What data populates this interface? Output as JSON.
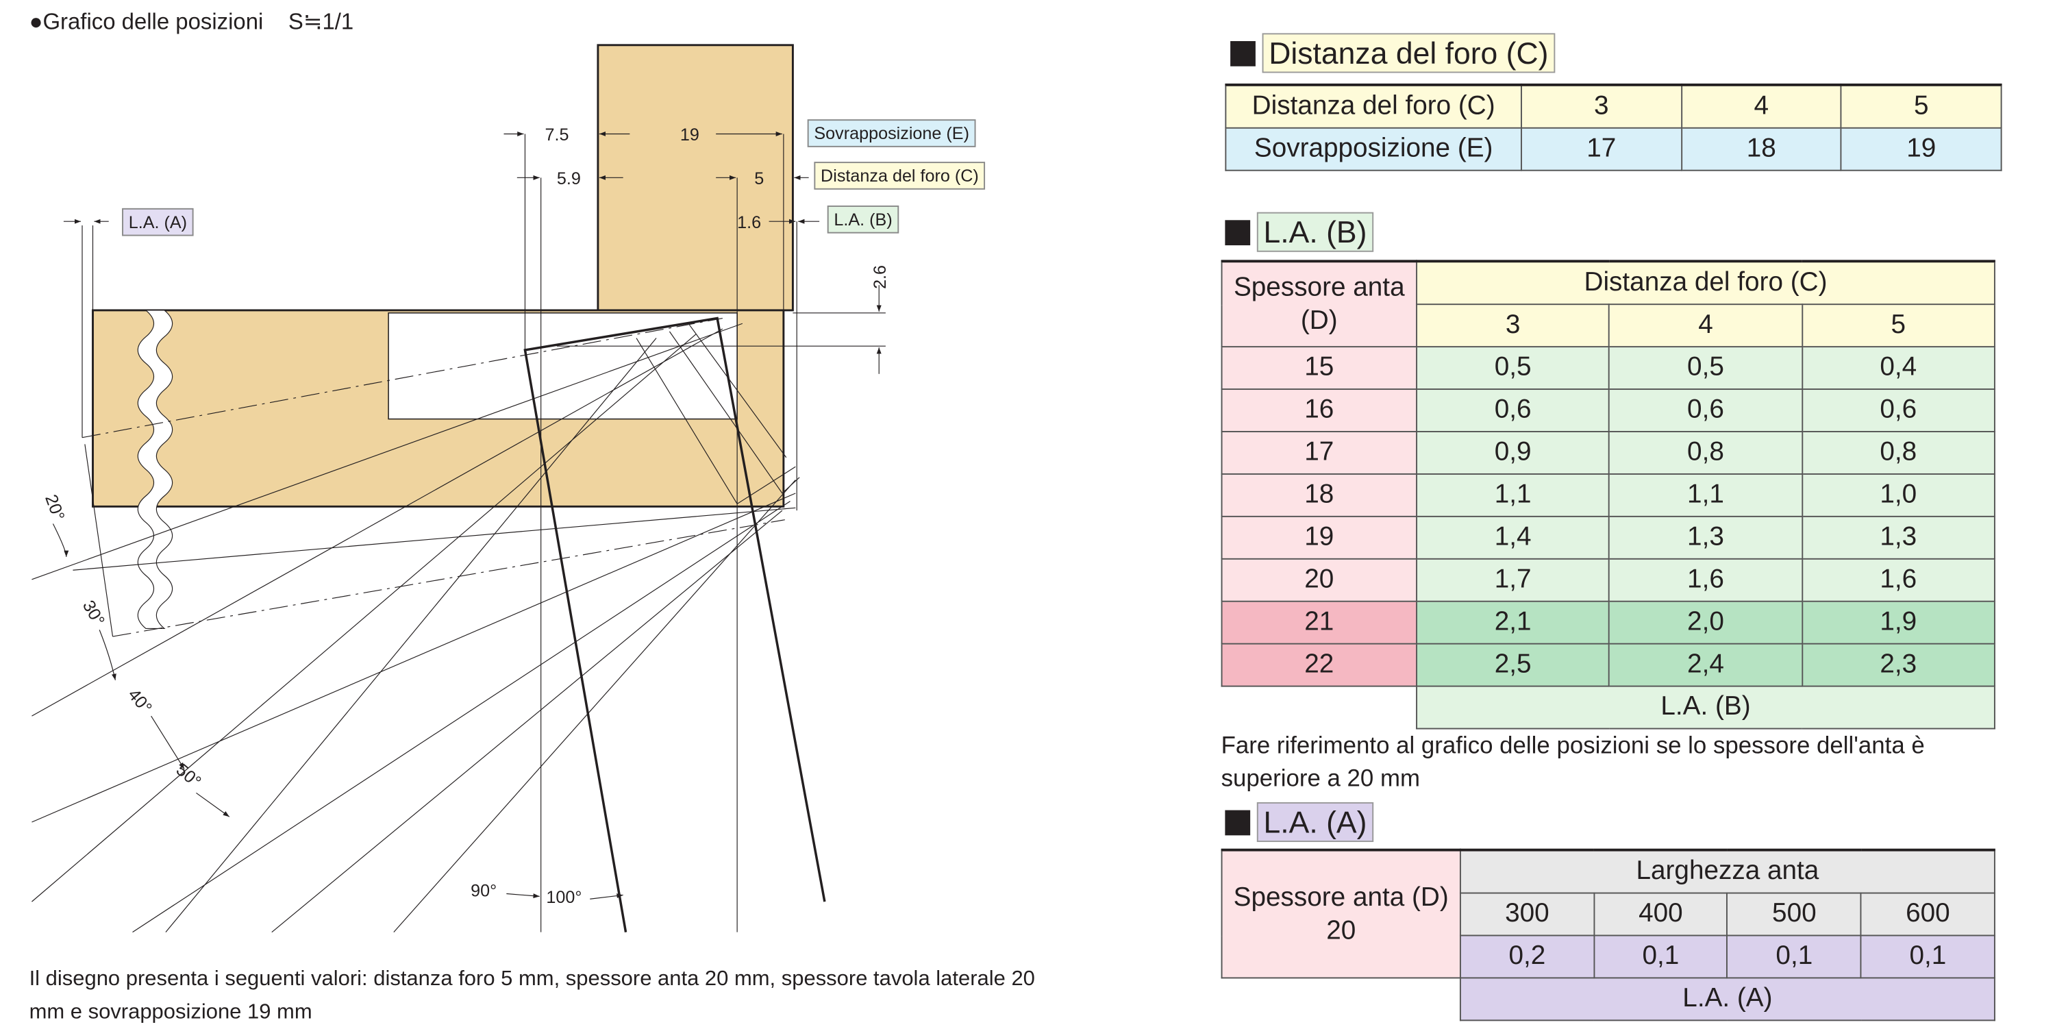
{
  "drawing": {
    "title": "●Grafico delle posizioni",
    "scale": "S≒1/1",
    "dims": {
      "d75": "7.5",
      "d19": "19",
      "d59": "5.9",
      "d5": "5",
      "d16": "1.6",
      "d26": "2.6"
    },
    "labels": {
      "overlap": "Sovrapposizione (E)",
      "hole": "Distanza del foro (C)",
      "la_b": "L.A. (B)",
      "la_a": "L.A. (A)"
    },
    "angles": [
      "20°",
      "30°",
      "40°",
      "50°",
      "90°",
      "100°"
    ],
    "footnote": "Il disegno presenta i seguenti valori: distanza foro 5 mm, spessore anta 20 mm, spessore tavola laterale 20 mm e sovrapposizione 19 mm",
    "colors": {
      "wood": "#efd49f",
      "overlap": "#d9f0f9",
      "hole": "#fefbd9",
      "la_b": "#e2f4e2",
      "la_a": "#e3def3"
    }
  },
  "table_c": {
    "heading": "Distanza del foro (C)",
    "row1_label": "Distanza del foro (C)",
    "row1": [
      "3",
      "4",
      "5"
    ],
    "row2_label": "Sovrapposizione (E)",
    "row2": [
      "17",
      "18",
      "19"
    ]
  },
  "table_b": {
    "heading": "L.A. (B)",
    "corner": "Spessore anta (D)",
    "group": "Distanza del foro (C)",
    "cols": [
      "3",
      "4",
      "5"
    ],
    "rows": [
      {
        "d": "15",
        "v": [
          "0,5",
          "0,5",
          "0,4"
        ]
      },
      {
        "d": "16",
        "v": [
          "0,6",
          "0,6",
          "0,6"
        ]
      },
      {
        "d": "17",
        "v": [
          "0,9",
          "0,8",
          "0,8"
        ]
      },
      {
        "d": "18",
        "v": [
          "1,1",
          "1,1",
          "1,0"
        ]
      },
      {
        "d": "19",
        "v": [
          "1,4",
          "1,3",
          "1,3"
        ]
      },
      {
        "d": "20",
        "v": [
          "1,7",
          "1,6",
          "1,6"
        ]
      },
      {
        "d": "21",
        "v": [
          "2,1",
          "2,0",
          "1,9"
        ]
      },
      {
        "d": "22",
        "v": [
          "2,5",
          "2,4",
          "2,3"
        ]
      }
    ],
    "footer": "L.A. (B)",
    "note": "Fare riferimento al grafico delle posizioni se lo spessore dell'anta è superiore a 20 mm"
  },
  "table_a": {
    "heading": "L.A. (A)",
    "corner": "Spessore anta (D)",
    "corner_value": "20",
    "group": "Larghezza anta",
    "cols": [
      "300",
      "400",
      "500",
      "600"
    ],
    "values": [
      "0,2",
      "0,1",
      "0,1",
      "0,1"
    ],
    "footer": "L.A. (A)"
  }
}
